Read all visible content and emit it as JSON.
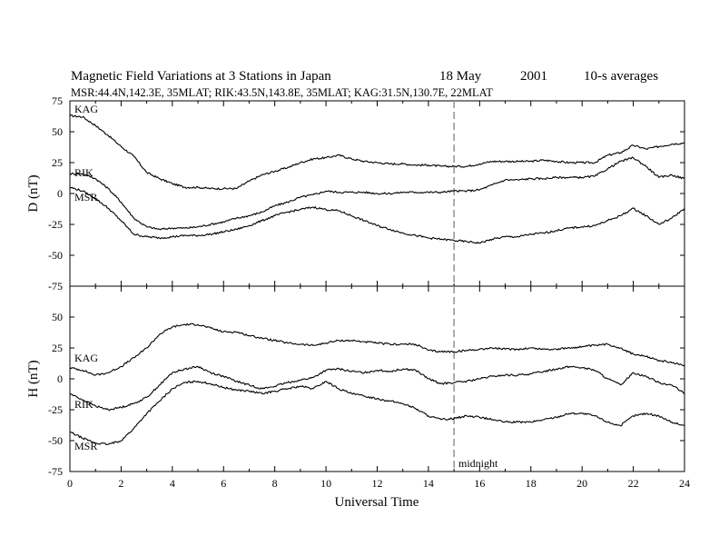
{
  "title": {
    "main": "Magnetic Field Variations at 3 Stations in Japan",
    "date": "18  May",
    "year": "2001",
    "note": "10-s averages"
  },
  "subtitle": "MSR:44.4N,142.3E, 35MLAT;  RIK:43.5N,143.8E, 35MLAT;  KAG:31.5N,130.7E, 22MLAT",
  "midnight_label": "midnight",
  "colors": {
    "line": "#000000",
    "marker": "#999999",
    "background": "#ffffff"
  },
  "chart_data": [
    {
      "type": "line",
      "panel": "top",
      "xlabel": "",
      "ylabel": "D (nT)",
      "xlim": [
        0,
        24
      ],
      "ylim": [
        -75,
        75
      ],
      "yticks": [
        75,
        50,
        25,
        0,
        -25,
        -50,
        -75
      ],
      "vline": {
        "x": 15,
        "style": "dashed"
      },
      "series": [
        {
          "name": "KAG",
          "x": [
            0,
            0.5,
            1,
            1.5,
            2,
            2.5,
            3,
            3.5,
            4,
            4.5,
            5,
            5.5,
            6,
            6.5,
            7,
            7.5,
            8,
            8.5,
            9,
            9.5,
            10,
            10.5,
            11,
            11.5,
            12,
            12.5,
            13,
            13.5,
            14,
            14.5,
            15,
            15.5,
            16,
            16.5,
            17,
            17.5,
            18,
            18.5,
            19,
            19.5,
            20,
            20.5,
            21,
            21.5,
            22,
            22.5,
            23,
            23.5,
            24
          ],
          "values": [
            63,
            62,
            55,
            47,
            38,
            30,
            17,
            12,
            8,
            5,
            5,
            4,
            4,
            4,
            10,
            15,
            18,
            21,
            25,
            28,
            29,
            31,
            28,
            26,
            25,
            24,
            24,
            23,
            23,
            22,
            22,
            22,
            24,
            26,
            26,
            26,
            26,
            27,
            26,
            25,
            25,
            25,
            31,
            33,
            39,
            36,
            38,
            40,
            41
          ]
        },
        {
          "name": "RIK",
          "x": [
            0,
            0.5,
            1,
            1.5,
            2,
            2.5,
            3,
            3.5,
            4,
            4.5,
            5,
            5.5,
            6,
            6.5,
            7,
            7.5,
            8,
            8.5,
            9,
            9.5,
            10,
            10.5,
            11,
            11.5,
            12,
            12.5,
            13,
            13.5,
            14,
            14.5,
            15,
            15.5,
            16,
            16.5,
            17,
            17.5,
            18,
            18.5,
            19,
            19.5,
            20,
            20.5,
            21,
            21.5,
            22,
            22.5,
            23,
            23.5,
            24
          ],
          "values": [
            16,
            16,
            12,
            4,
            -7,
            -20,
            -27,
            -29,
            -28,
            -28,
            -27,
            -25,
            -23,
            -20,
            -18,
            -15,
            -10,
            -7,
            -3,
            -1,
            2,
            1,
            1,
            1,
            0,
            0,
            1,
            1,
            1,
            1,
            2,
            2,
            3,
            7,
            11,
            11,
            12,
            12,
            13,
            13,
            13,
            14,
            20,
            26,
            29,
            22,
            13,
            15,
            12
          ]
        },
        {
          "name": "MSR",
          "x": [
            0,
            0.5,
            1,
            1.5,
            2,
            2.5,
            3,
            3.5,
            4,
            4.5,
            5,
            5.5,
            6,
            6.5,
            7,
            7.5,
            8,
            8.5,
            9,
            9.5,
            10,
            10.5,
            11,
            11.5,
            12,
            12.5,
            13,
            13.5,
            14,
            14.5,
            15,
            15.5,
            16,
            16.5,
            17,
            17.5,
            18,
            18.5,
            19,
            19.5,
            20,
            20.5,
            21,
            21.5,
            22,
            22.5,
            23,
            23.5,
            24
          ],
          "values": [
            5,
            2,
            -4,
            -12,
            -22,
            -33,
            -35,
            -36,
            -35,
            -34,
            -34,
            -33,
            -31,
            -29,
            -26,
            -22,
            -18,
            -15,
            -13,
            -11,
            -13,
            -14,
            -18,
            -22,
            -26,
            -29,
            -32,
            -34,
            -36,
            -37,
            -38,
            -39,
            -40,
            -37,
            -35,
            -35,
            -33,
            -32,
            -30,
            -28,
            -27,
            -26,
            -22,
            -18,
            -12,
            -18,
            -25,
            -20,
            -12
          ]
        }
      ]
    },
    {
      "type": "line",
      "panel": "bottom",
      "xlabel": "Universal Time",
      "ylabel": "H (nT)",
      "xlim": [
        0,
        24
      ],
      "ylim": [
        -75,
        75
      ],
      "yticks": [
        50,
        25,
        0,
        -25,
        -50,
        -75
      ],
      "xticks": [
        0,
        2,
        4,
        6,
        8,
        10,
        12,
        14,
        16,
        18,
        20,
        22,
        24
      ],
      "vline": {
        "x": 15,
        "style": "dashed"
      },
      "series": [
        {
          "name": "KAG",
          "x": [
            0,
            0.5,
            1,
            1.5,
            2,
            2.5,
            3,
            3.5,
            4,
            4.5,
            5,
            5.5,
            6,
            6.5,
            7,
            7.5,
            8,
            8.5,
            9,
            9.5,
            10,
            10.5,
            11,
            11.5,
            12,
            12.5,
            13,
            13.5,
            14,
            14.5,
            15,
            15.5,
            16,
            16.5,
            17,
            17.5,
            18,
            18.5,
            19,
            19.5,
            20,
            20.5,
            21,
            21.5,
            22,
            22.5,
            23,
            23.5,
            24
          ],
          "values": [
            9,
            7,
            3,
            5,
            10,
            17,
            25,
            36,
            42,
            44,
            44,
            41,
            38,
            38,
            35,
            33,
            31,
            29,
            28,
            27,
            29,
            31,
            31,
            30,
            29,
            28,
            28,
            28,
            23,
            22,
            22,
            23,
            24,
            25,
            24,
            24,
            25,
            24,
            24,
            25,
            26,
            27,
            28,
            25,
            20,
            18,
            15,
            13,
            11
          ]
        },
        {
          "name": "RIK",
          "x": [
            0,
            0.5,
            1,
            1.5,
            2,
            2.5,
            3,
            3.5,
            4,
            4.5,
            5,
            5.5,
            6,
            6.5,
            7,
            7.5,
            8,
            8.5,
            9,
            9.5,
            10,
            10.5,
            11,
            11.5,
            12,
            12.5,
            13,
            13.5,
            14,
            14.5,
            15,
            15.5,
            16,
            16.5,
            17,
            17.5,
            18,
            18.5,
            19,
            19.5,
            20,
            20.5,
            21,
            21.5,
            22,
            22.5,
            23,
            23.5,
            24
          ],
          "values": [
            -12,
            -17,
            -22,
            -25,
            -23,
            -20,
            -15,
            -5,
            5,
            8,
            10,
            5,
            2,
            -2,
            -5,
            -8,
            -6,
            -3,
            -1,
            1,
            7,
            8,
            6,
            5,
            7,
            6,
            8,
            7,
            0,
            -4,
            -3,
            -2,
            0,
            2,
            3,
            3,
            4,
            6,
            8,
            10,
            9,
            7,
            0,
            -5,
            5,
            2,
            -3,
            -5,
            -12
          ]
        },
        {
          "name": "MSR",
          "x": [
            0,
            0.5,
            1,
            1.5,
            2,
            2.5,
            3,
            3.5,
            4,
            4.5,
            5,
            5.5,
            6,
            6.5,
            7,
            7.5,
            8,
            8.5,
            9,
            9.5,
            10,
            10.5,
            11,
            11.5,
            12,
            12.5,
            13,
            13.5,
            14,
            14.5,
            15,
            15.5,
            16,
            16.5,
            17,
            17.5,
            18,
            18.5,
            19,
            19.5,
            20,
            20.5,
            21,
            21.5,
            22,
            22.5,
            23,
            23.5,
            24
          ],
          "values": [
            -43,
            -48,
            -52,
            -53,
            -50,
            -40,
            -28,
            -18,
            -8,
            -3,
            -2,
            -4,
            -7,
            -9,
            -10,
            -12,
            -10,
            -8,
            -6,
            -8,
            -2,
            -8,
            -12,
            -14,
            -16,
            -18,
            -20,
            -24,
            -30,
            -33,
            -32,
            -30,
            -31,
            -33,
            -35,
            -35,
            -35,
            -33,
            -31,
            -28,
            -28,
            -30,
            -35,
            -38,
            -30,
            -28,
            -30,
            -35,
            -38
          ]
        }
      ]
    }
  ]
}
